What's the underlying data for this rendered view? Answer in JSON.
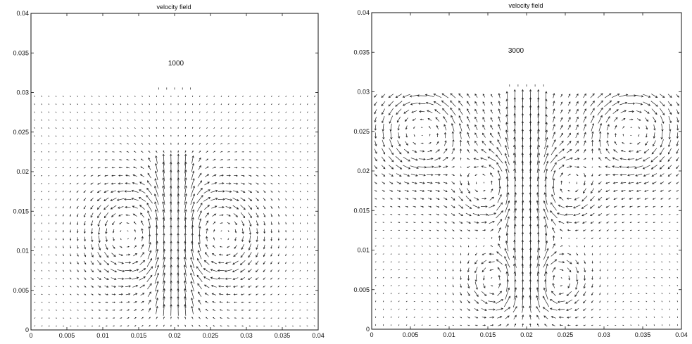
{
  "chart_data": [
    {
      "type": "quiver",
      "title": "velocity field",
      "annotation": "1000",
      "xlim": [
        0,
        0.04
      ],
      "ylim": [
        0,
        0.04
      ],
      "xticks": [
        "0",
        "0.005",
        "0.01",
        "0.015",
        "0.02",
        "0.025",
        "0.03",
        "0.035",
        "0.04"
      ],
      "yticks": [
        "0",
        "0.005",
        "0.01",
        "0.015",
        "0.02",
        "0.025",
        "0.03",
        "0.035",
        "0.04"
      ],
      "field": {
        "x_range": [
          0.0005,
          0.0395
        ],
        "y_range": [
          0.0005,
          0.0295
        ],
        "grid": [
          40,
          30
        ],
        "inlet": {
          "x_center": 0.02,
          "half_width": 0.0022,
          "y_top": 0.0305
        },
        "jet": {
          "x_center": 0.02,
          "half_width": 0.0025,
          "y_start": 0.002,
          "y_end": 0.022
        },
        "vortices": [
          {
            "x": 0.0145,
            "y": 0.012,
            "direction": "counterclockwise",
            "radius": 0.005
          },
          {
            "x": 0.0255,
            "y": 0.012,
            "direction": "clockwise",
            "radius": 0.005
          }
        ]
      }
    },
    {
      "type": "quiver",
      "title": "velocity field",
      "annotation": "3000",
      "xlim": [
        0,
        0.04
      ],
      "ylim": [
        0,
        0.04
      ],
      "xticks": [
        "0",
        "0.005",
        "0.01",
        "0.015",
        "0.02",
        "0.025",
        "0.03",
        "0.035",
        "0.04"
      ],
      "yticks": [
        "0",
        "0.005",
        "0.01",
        "0.015",
        "0.02",
        "0.025",
        "0.03",
        "0.035",
        "0.04"
      ],
      "field": {
        "x_range": [
          0.0005,
          0.0395
        ],
        "y_range": [
          0.0005,
          0.0295
        ],
        "grid": [
          40,
          30
        ],
        "inlet": {
          "x_center": 0.02,
          "half_width": 0.0022,
          "y_top": 0.0308
        },
        "jet": {
          "x_center": 0.02,
          "half_width": 0.0025,
          "y_start": 0.003,
          "y_end": 0.03
        },
        "vortices": [
          {
            "x": 0.0065,
            "y": 0.025,
            "direction": "counterclockwise",
            "radius": 0.0045
          },
          {
            "x": 0.0335,
            "y": 0.025,
            "direction": "clockwise",
            "radius": 0.0045
          },
          {
            "x": 0.0155,
            "y": 0.018,
            "direction": "counterclockwise",
            "radius": 0.0035
          },
          {
            "x": 0.0245,
            "y": 0.018,
            "direction": "clockwise",
            "radius": 0.0035
          },
          {
            "x": 0.0165,
            "y": 0.006,
            "direction": "counterclockwise",
            "radius": 0.003
          },
          {
            "x": 0.0235,
            "y": 0.006,
            "direction": "clockwise",
            "radius": 0.003
          }
        ]
      }
    }
  ]
}
